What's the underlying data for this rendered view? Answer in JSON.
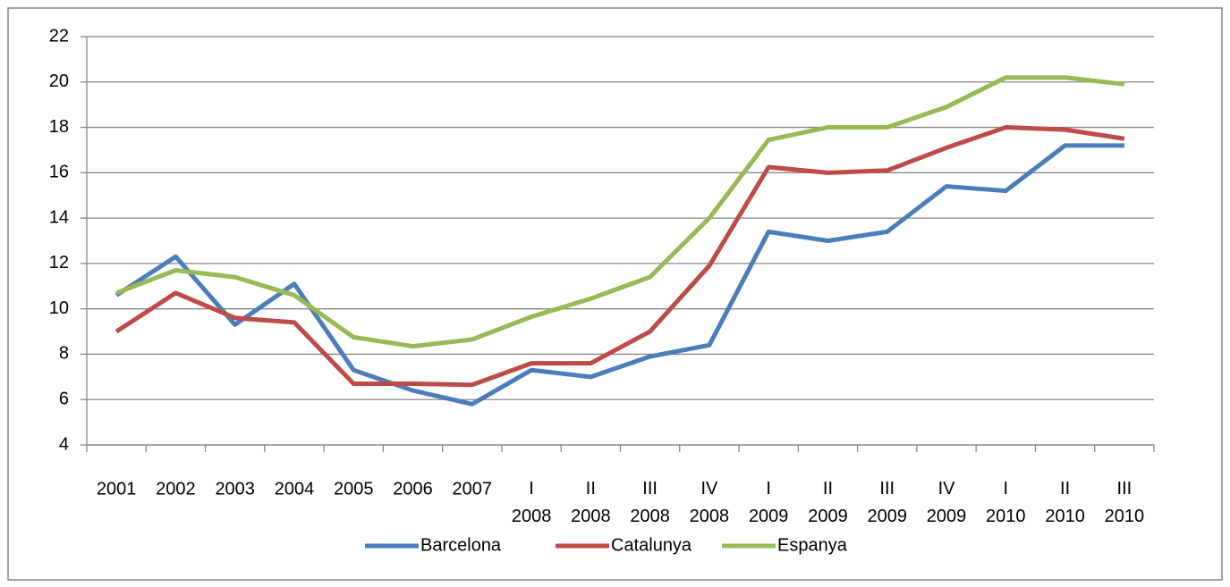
{
  "chart_data": {
    "type": "line",
    "categories": [
      "2001",
      "2002",
      "2003",
      "2004",
      "2005",
      "2006",
      "2007",
      "I 2008",
      "II 2008",
      "III 2008",
      "IV 2008",
      "I 2009",
      "II 2009",
      "III 2009",
      "IV 2009",
      "I 2010",
      "II 2010",
      "III 2010"
    ],
    "series": [
      {
        "name": "Barcelona",
        "color": "#4a7ebb",
        "values": [
          10.6,
          12.3,
          9.3,
          11.1,
          7.3,
          6.4,
          5.8,
          7.3,
          7.0,
          7.9,
          8.4,
          13.4,
          13.0,
          13.4,
          15.4,
          15.2,
          17.2,
          17.2
        ]
      },
      {
        "name": "Catalunya",
        "color": "#be4b48",
        "values": [
          9.0,
          10.7,
          9.6,
          9.4,
          6.7,
          6.7,
          6.65,
          7.6,
          7.6,
          9.0,
          11.9,
          16.25,
          16.0,
          16.1,
          17.1,
          18.0,
          17.9,
          17.5
        ]
      },
      {
        "name": "Espanya",
        "color": "#98b954",
        "values": [
          10.7,
          11.7,
          11.4,
          10.6,
          8.75,
          8.35,
          8.65,
          9.65,
          10.45,
          11.4,
          14.0,
          17.45,
          18.0,
          18.0,
          18.9,
          20.2,
          20.2,
          19.9
        ]
      }
    ],
    "ylim": [
      4,
      22
    ],
    "yticks": [
      4,
      6,
      8,
      10,
      12,
      14,
      16,
      18,
      20,
      22
    ],
    "grid": true,
    "legend": "bottom"
  }
}
